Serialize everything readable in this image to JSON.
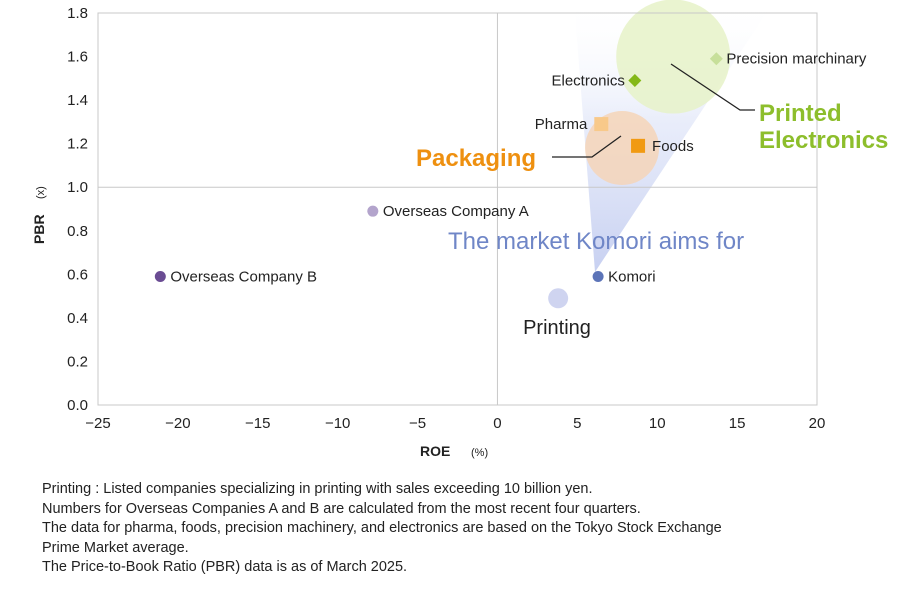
{
  "chart_data": {
    "type": "scatter",
    "xlabel": "ROE",
    "xunit": "(%)",
    "ylabel": "PBR",
    "yunit": "(x)",
    "xlim": [
      -25,
      20
    ],
    "ylim": [
      0,
      1.8
    ],
    "xticks": [
      -25,
      -20,
      -15,
      -10,
      -5,
      0,
      5,
      10,
      15,
      20
    ],
    "yticks": [
      "0.0",
      "0.2",
      "0.4",
      "0.6",
      "0.8",
      "1.0",
      "1.2",
      "1.4",
      "1.6",
      "1.8"
    ],
    "grid": "reference lines at x=0 and y=1.0",
    "points": [
      {
        "label": "Overseas Company B",
        "x": -21.1,
        "y": 0.59,
        "shape": "circle",
        "color": "#6a4c93"
      },
      {
        "label": "Overseas Company A",
        "x": -7.8,
        "y": 0.89,
        "shape": "circle",
        "color": "#b3a4cc"
      },
      {
        "label": "Komori",
        "x": 6.3,
        "y": 0.59,
        "shape": "circle",
        "color": "#5c74b8"
      },
      {
        "label": "Pharma",
        "x": 6.5,
        "y": 1.29,
        "shape": "square",
        "color": "#f8c98a"
      },
      {
        "label": "Foods",
        "x": 8.8,
        "y": 1.19,
        "shape": "square",
        "color": "#f19a12"
      },
      {
        "label": "Electronics",
        "x": 8.6,
        "y": 1.49,
        "shape": "diamond",
        "color": "#84b818"
      },
      {
        "label": "Precision marchinary",
        "x": 13.7,
        "y": 1.59,
        "shape": "diamond",
        "color": "#c7df9a"
      }
    ],
    "bubbles": [
      {
        "label": "Printing",
        "x": 3.8,
        "y": 0.49,
        "color": "#c3c9ec"
      },
      {
        "label": "Packaging",
        "x": 7.8,
        "y": 1.18,
        "color": "#f6d3b4"
      },
      {
        "label": "Printed Electronics",
        "x": 11.0,
        "y": 1.6,
        "color": "#e6f2c8"
      }
    ],
    "annotations": {
      "target": "The market Komori aims for",
      "packaging": "Packaging",
      "printed_electronics_line1": "Printed",
      "printed_electronics_line2": "Electronics",
      "printing": "Printing"
    },
    "colors": {
      "target_text": "#6f86c7",
      "packaging_text": "#ee9010",
      "printed_electronics_text": "#8dbe2c",
      "cone": "#cdd6f3"
    }
  },
  "notes": [
    "Printing : Listed companies specializing in printing with sales exceeding 10 billion yen.",
    "Numbers for Overseas Companies A and B are calculated from the most recent four quarters.",
    "The data for pharma, foods, precision machinery, and electronics are based on the Tokyo Stock Exchange",
    "Prime Market average.",
    "The Price-to-Book Ratio (PBR) data is as of March 2025."
  ]
}
